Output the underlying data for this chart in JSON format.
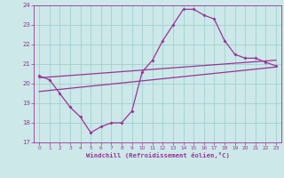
{
  "xlabel": "Windchill (Refroidissement éolien,°C)",
  "xlim": [
    -0.5,
    23.5
  ],
  "ylim": [
    17,
    24
  ],
  "yticks": [
    17,
    18,
    19,
    20,
    21,
    22,
    23,
    24
  ],
  "xticks": [
    0,
    1,
    2,
    3,
    4,
    5,
    6,
    7,
    8,
    9,
    10,
    11,
    12,
    13,
    14,
    15,
    16,
    17,
    18,
    19,
    20,
    21,
    22,
    23
  ],
  "background_color": "#cce8e8",
  "grid_color": "#99cccc",
  "line_color": "#993399",
  "curve1_x": [
    0,
    1,
    2,
    3,
    4,
    5,
    6,
    7,
    8,
    9,
    10,
    11,
    12,
    13,
    14,
    15,
    16,
    17,
    18,
    19,
    20,
    21,
    22,
    23
  ],
  "curve1_y": [
    20.4,
    20.2,
    19.5,
    18.8,
    18.3,
    17.5,
    17.8,
    18.0,
    18.0,
    18.6,
    20.6,
    21.2,
    22.2,
    23.0,
    23.8,
    23.8,
    23.5,
    23.3,
    22.2,
    21.5,
    21.3,
    21.3,
    21.1,
    20.9
  ],
  "curve2_x": [
    0,
    23
  ],
  "curve2_y": [
    20.3,
    21.2
  ],
  "curve3_x": [
    0,
    23
  ],
  "curve3_y": [
    19.6,
    20.85
  ]
}
